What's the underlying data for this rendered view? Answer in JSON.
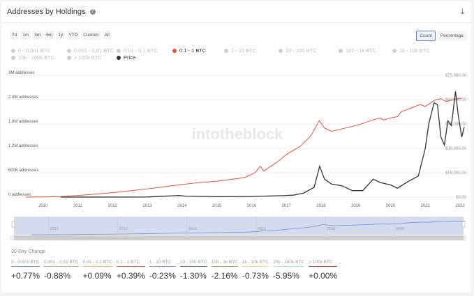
{
  "header": {
    "title": "Addresses by Holdings",
    "help_icon": "?",
    "download_icon": "⤓"
  },
  "ranges": [
    "7d",
    "1m",
    "3m",
    "6m",
    "1y",
    "YTD",
    "Custom",
    "All"
  ],
  "modes": [
    "Count",
    "Percentage"
  ],
  "legend": [
    {
      "label": "0 - 0.001 BTC",
      "active": false
    },
    {
      "label": "0.001 - 0.01 BTC",
      "active": false
    },
    {
      "label": "0.01 - 0.1 BTC",
      "active": false
    },
    {
      "label": "0.1 - 1 BTC",
      "active": true,
      "color": "#e8513e"
    },
    {
      "label": "1 - 10 BTC",
      "active": false
    },
    {
      "label": "10 - 100 BTC",
      "active": false
    },
    {
      "label": "100 - 1k BTC",
      "active": false
    },
    {
      "label": "1k - 10k BTC",
      "active": false
    },
    {
      "label": "10k - 100k BTC",
      "active": false
    },
    {
      "label": "> 100k BTC",
      "active": false
    },
    {
      "label": "Price",
      "active": true,
      "color": "#333333"
    }
  ],
  "chart_data": {
    "type": "line",
    "title": "Addresses by Holdings",
    "watermark": "intotheblock",
    "x_ticks": [
      "2010",
      "2011",
      "2012",
      "2013",
      "2014",
      "2015",
      "2016",
      "2017",
      "2018",
      "2019",
      "2020",
      "2021",
      "2022"
    ],
    "left_ticks": [
      "0 addresses",
      "600K addresses",
      "1.2M addresses",
      "1.8M addresses",
      "2.4M addresses",
      "3M addresses"
    ],
    "right_ticks": [
      "$0.00",
      "$15,000.00",
      "$30,000.00",
      "$45,000.00",
      "$60,000.00",
      "$75,000.00"
    ],
    "left_range": [
      0,
      3000000
    ],
    "right_range": [
      0,
      75000
    ],
    "x_range": [
      2009,
      2022.1
    ],
    "navigator_ticks": [
      "2010",
      "2012",
      "2014",
      "2016",
      "2018",
      "2020"
    ],
    "series": [
      {
        "name": "0.1 - 1 BTC",
        "axis": "left",
        "color": "#e8513e",
        "points": [
          [
            2009.5,
            0
          ],
          [
            2010.5,
            10000
          ],
          [
            2011.3,
            60000
          ],
          [
            2012,
            110000
          ],
          [
            2013,
            200000
          ],
          [
            2013.9,
            300000
          ],
          [
            2014.5,
            360000
          ],
          [
            2015,
            390000
          ],
          [
            2015.8,
            480000
          ],
          [
            2016.1,
            600000
          ],
          [
            2016.25,
            760000
          ],
          [
            2016.35,
            640000
          ],
          [
            2016.8,
            900000
          ],
          [
            2017,
            1050000
          ],
          [
            2017.4,
            1250000
          ],
          [
            2017.7,
            1500000
          ],
          [
            2017.95,
            1880000
          ],
          [
            2018.1,
            1700000
          ],
          [
            2018.3,
            1620000
          ],
          [
            2018.5,
            1660000
          ],
          [
            2019,
            1760000
          ],
          [
            2019.5,
            1900000
          ],
          [
            2019.7,
            1950000
          ],
          [
            2019.8,
            1900000
          ],
          [
            2020,
            1950000
          ],
          [
            2020.2,
            1980000
          ],
          [
            2020.3,
            2100000
          ],
          [
            2020.7,
            2230000
          ],
          [
            2020.85,
            2280000
          ],
          [
            2021,
            2230000
          ],
          [
            2021.3,
            2400000
          ],
          [
            2021.45,
            2420000
          ],
          [
            2021.6,
            2350000
          ],
          [
            2021.8,
            2400000
          ],
          [
            2022.05,
            2440000
          ]
        ]
      },
      {
        "name": "Price",
        "axis": "right",
        "color": "#333333",
        "points": [
          [
            2010.5,
            0
          ],
          [
            2013,
            100
          ],
          [
            2013.9,
            1000
          ],
          [
            2014.1,
            600
          ],
          [
            2015,
            250
          ],
          [
            2016,
            400
          ],
          [
            2016.9,
            900
          ],
          [
            2017.2,
            1200
          ],
          [
            2017.5,
            2500
          ],
          [
            2017.8,
            6000
          ],
          [
            2017.96,
            19000
          ],
          [
            2018.1,
            11000
          ],
          [
            2018.3,
            8000
          ],
          [
            2018.6,
            7000
          ],
          [
            2018.9,
            4000
          ],
          [
            2019.2,
            4000
          ],
          [
            2019.5,
            11000
          ],
          [
            2019.7,
            9000
          ],
          [
            2020,
            7500
          ],
          [
            2020.2,
            5500
          ],
          [
            2020.5,
            9500
          ],
          [
            2020.8,
            13000
          ],
          [
            2021,
            30000
          ],
          [
            2021.1,
            45000
          ],
          [
            2021.25,
            58000
          ],
          [
            2021.35,
            57000
          ],
          [
            2021.45,
            37000
          ],
          [
            2021.55,
            32000
          ],
          [
            2021.65,
            47000
          ],
          [
            2021.75,
            44000
          ],
          [
            2021.87,
            65000
          ],
          [
            2021.95,
            50000
          ],
          [
            2022.05,
            37000
          ],
          [
            2022.12,
            43000
          ]
        ]
      }
    ]
  },
  "change": {
    "title": "30-Day Change",
    "items": [
      {
        "label": "0 - 0.001 BTC",
        "value": "+0.77%",
        "color": "#6a8fdc"
      },
      {
        "label": "0.001 - 0.01 BTC",
        "value": "-0.88%",
        "color": "#9cc07a"
      },
      {
        "label": "0.01 - 0.1 BTC",
        "value": "+0.09%",
        "color": "#f0b553"
      },
      {
        "label": "0.1 - 1 BTC",
        "value": "+0.39%",
        "color": "#e8513e"
      },
      {
        "label": "1 - 10 BTC",
        "value": "-0.23%",
        "color": "#a37fd0"
      },
      {
        "label": "10 - 100 BTC",
        "value": "-1.30%",
        "color": "#4f6b9a"
      },
      {
        "label": "100 - 1k BTC",
        "value": "-2.16%",
        "color": "#7fb04f"
      },
      {
        "label": "1k - 10k BTC",
        "value": "-0.73%",
        "color": "#f5d56a"
      },
      {
        "label": "10k - 100k BTC",
        "value": "-5.95%",
        "color": "#a8e0d0"
      },
      {
        "label": "> 100k BTC",
        "value": "+0.00%",
        "color": "#b8343a"
      }
    ]
  }
}
